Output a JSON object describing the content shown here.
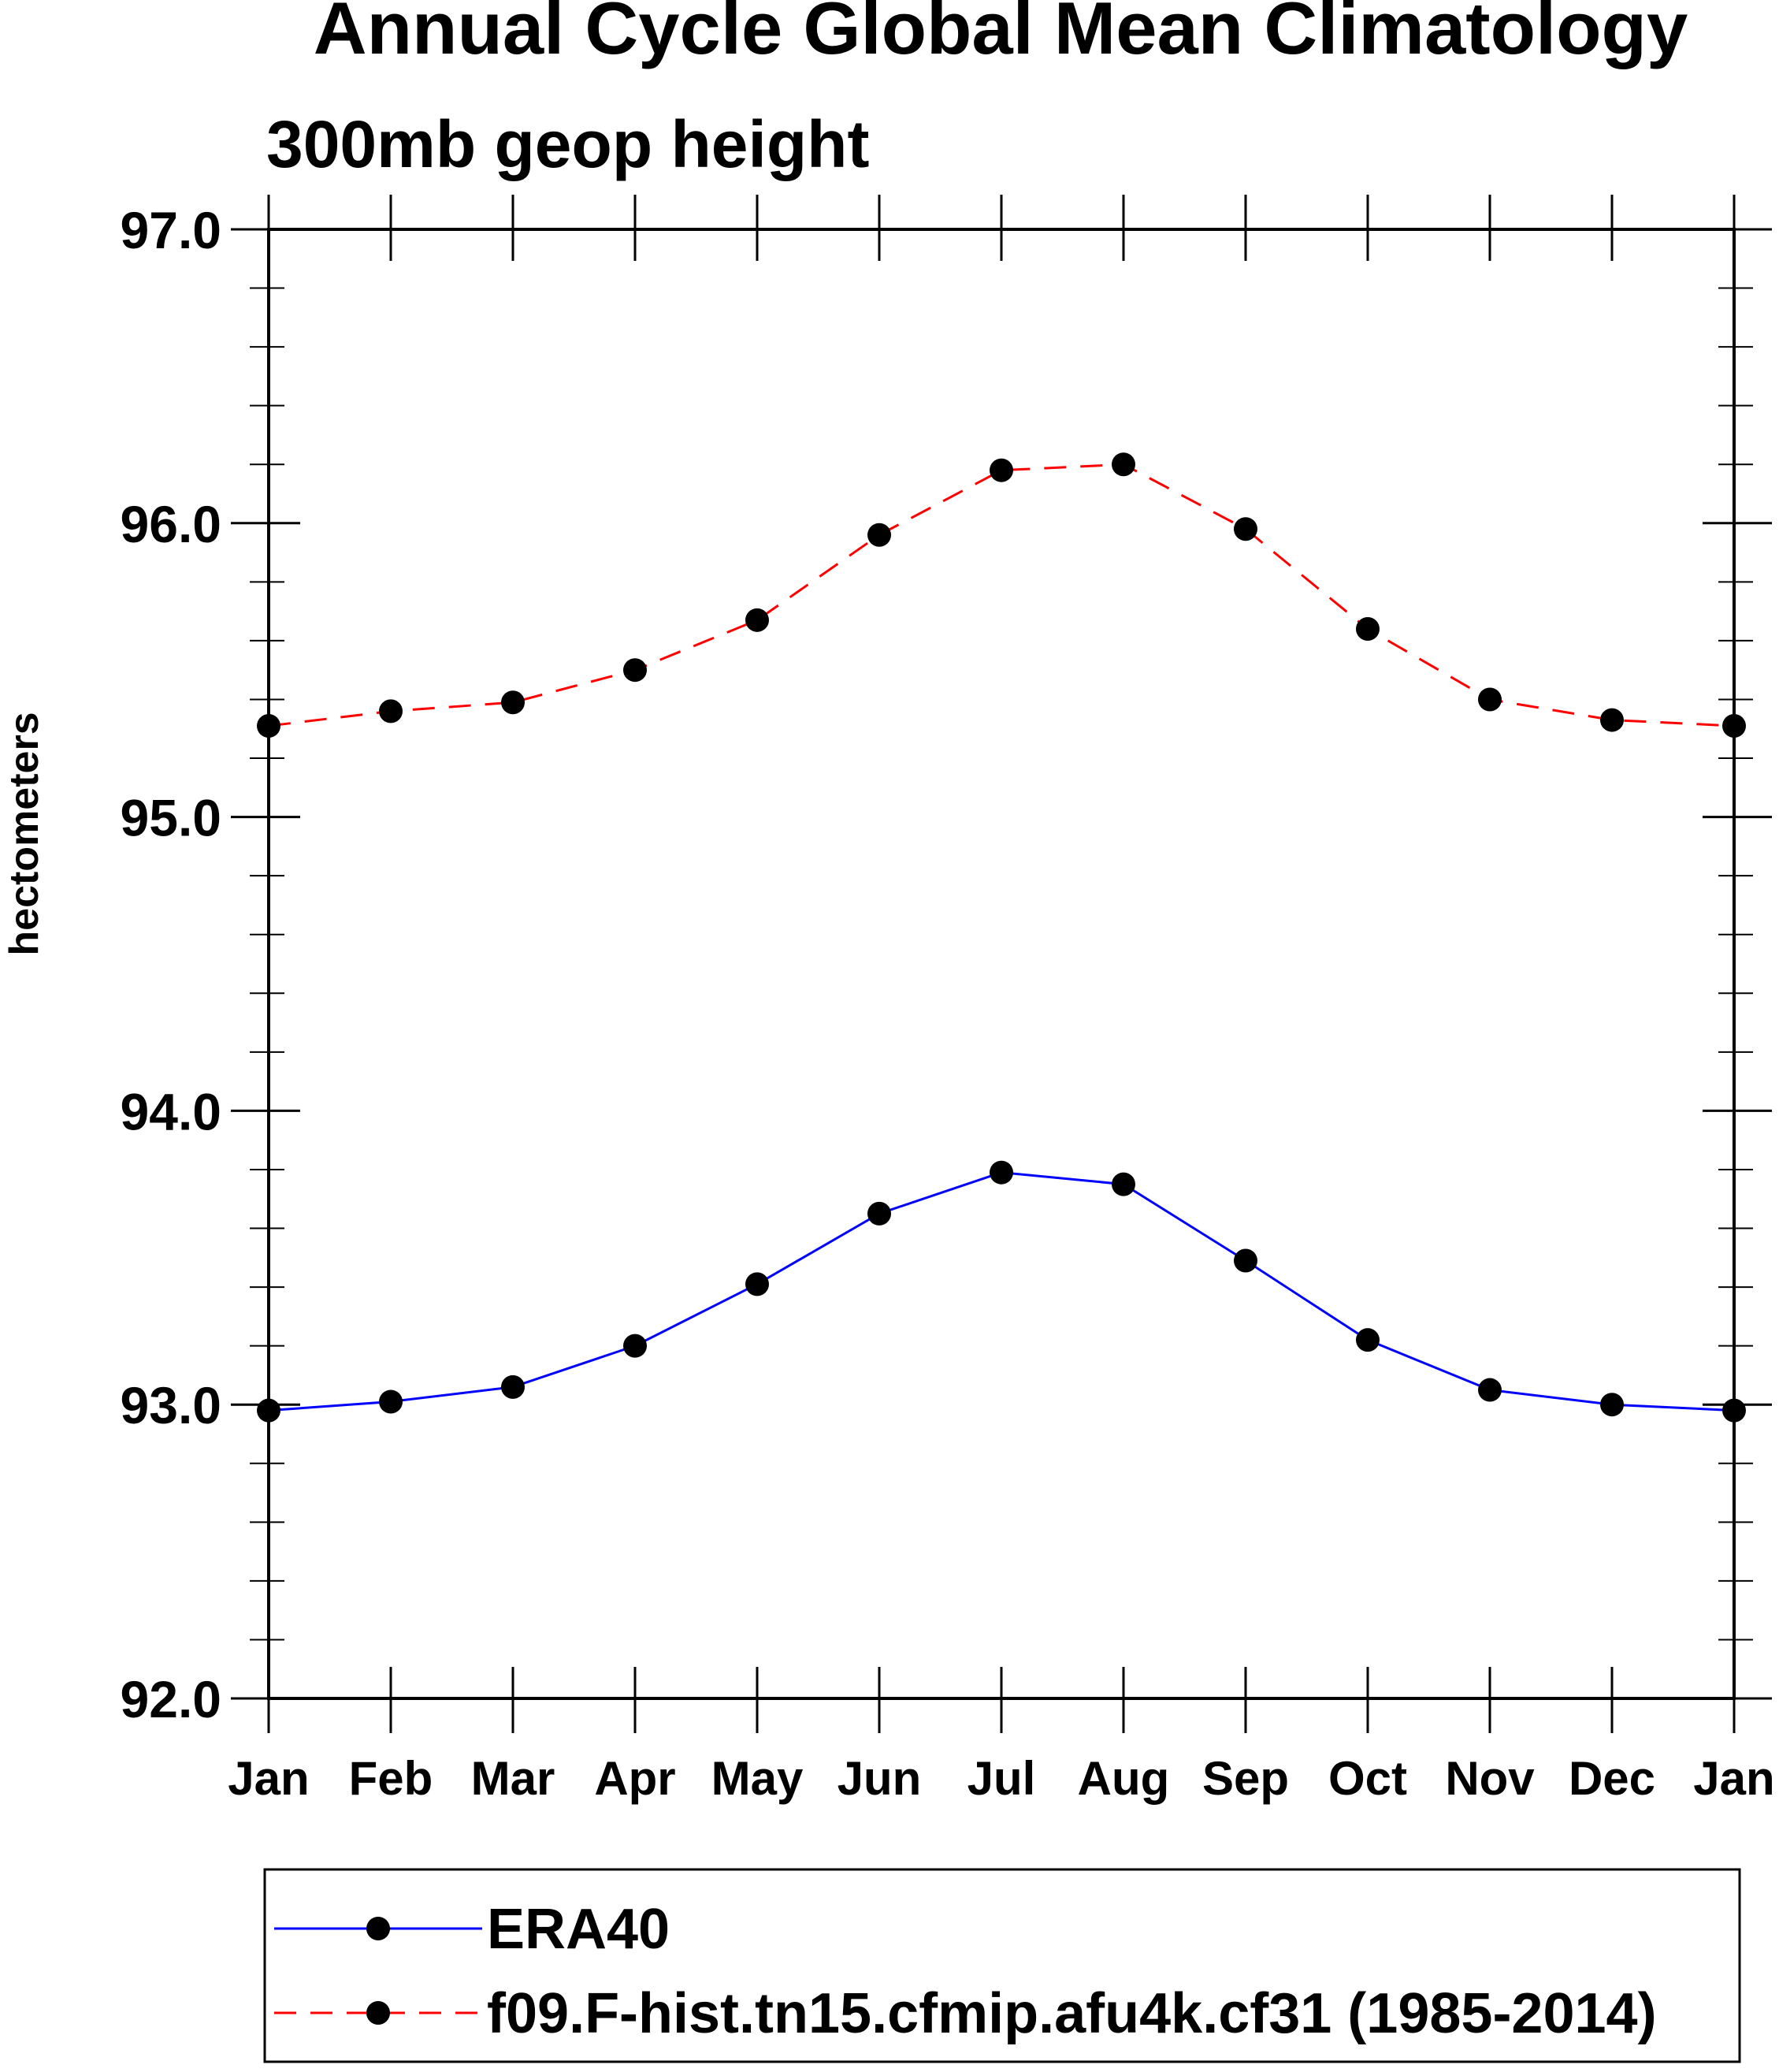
{
  "chart_data": {
    "type": "line",
    "title": "Annual Cycle Global Mean Climatology",
    "subtitle": "300mb geop height",
    "xlabel": "",
    "ylabel": "hectometers",
    "categories": [
      "Jan",
      "Feb",
      "Mar",
      "Apr",
      "May",
      "Jun",
      "Jul",
      "Aug",
      "Sep",
      "Oct",
      "Nov",
      "Dec",
      "Jan"
    ],
    "ylim": [
      92.0,
      97.0
    ],
    "yticks": [
      92.0,
      93.0,
      94.0,
      95.0,
      96.0,
      97.0
    ],
    "ytick_labels": [
      "92.0",
      "93.0",
      "94.0",
      "95.0",
      "96.0",
      "97.0"
    ],
    "y_minor_step": 0.2,
    "grid": false,
    "legend_position": "bottom",
    "series": [
      {
        "name": "ERA40",
        "color": "#0000ff",
        "line_style": "solid",
        "marker": "filled-circle",
        "values": [
          92.98,
          93.01,
          93.06,
          93.2,
          93.41,
          93.65,
          93.79,
          93.75,
          93.49,
          93.22,
          93.05,
          93.0,
          92.98
        ]
      },
      {
        "name": "f09.F-hist.tn15.cfmip.afu4k.cf31 (1985-2014)",
        "color": "#ff0000",
        "line_style": "dashed",
        "marker": "filled-circle",
        "values": [
          95.31,
          95.36,
          95.39,
          95.5,
          95.67,
          95.96,
          96.18,
          96.2,
          95.98,
          95.64,
          95.4,
          95.33,
          95.31
        ]
      }
    ]
  },
  "colors": {
    "axis": "#000000",
    "marker": "#000000",
    "background": "#ffffff"
  }
}
